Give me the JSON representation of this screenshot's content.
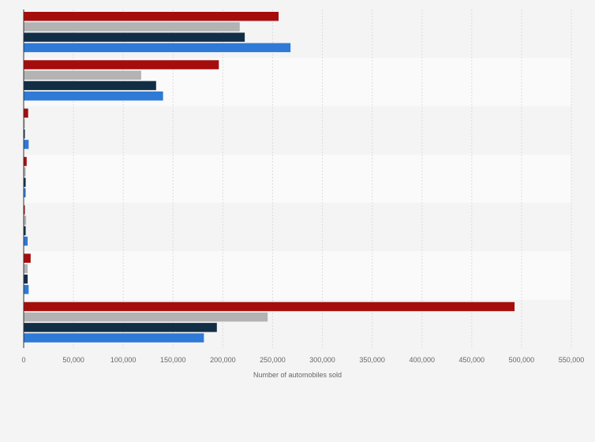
{
  "chart_data": {
    "type": "bar",
    "orientation": "horizontal",
    "title": "",
    "xlabel": "Number of automobiles sold",
    "ylabel": "",
    "xlim": [
      0,
      550000
    ],
    "xticks": [
      0,
      50000,
      100000,
      150000,
      200000,
      250000,
      300000,
      350000,
      400000,
      450000,
      500000,
      550000
    ],
    "xtick_labels": [
      "0",
      "50,000",
      "100,000",
      "150,000",
      "200,000",
      "250,000",
      "300,000",
      "350,000",
      "400,000",
      "450,000",
      "500,000",
      "550,000"
    ],
    "grid": true,
    "legend": "none",
    "categories": [
      "",
      "",
      "",
      "",
      "",
      "",
      ""
    ],
    "series": [
      {
        "color": "#a50d0d",
        "values": [
          256000,
          196000,
          4500,
          3000,
          1000,
          7000,
          493000
        ]
      },
      {
        "color": "#b3b3b3",
        "values": [
          217000,
          118000,
          1000,
          2000,
          2500,
          4000,
          245000
        ]
      },
      {
        "color": "#122e47",
        "values": [
          222000,
          133000,
          1000,
          2000,
          2000,
          4000,
          194000
        ]
      },
      {
        "color": "#2e7ad6",
        "values": [
          268000,
          140000,
          5000,
          2000,
          4000,
          5000,
          181000
        ]
      }
    ]
  }
}
